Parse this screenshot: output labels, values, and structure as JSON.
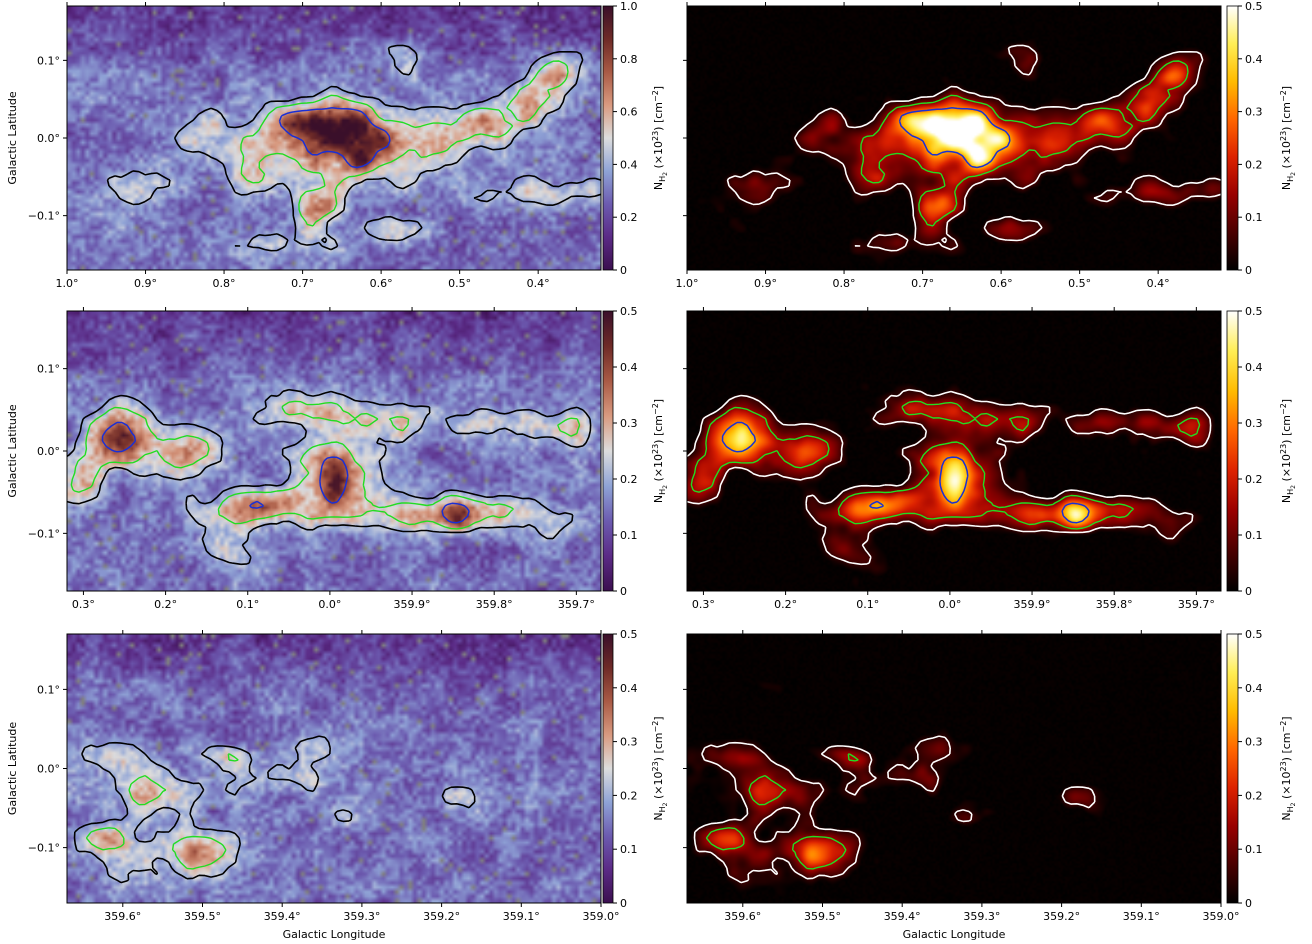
{
  "colors": {
    "left_colormap": [
      "#3b0f4f",
      "#5b2a86",
      "#6c5bb0",
      "#8fa3d6",
      "#dddddd",
      "#d99a80",
      "#a95a45",
      "#6e2a27",
      "#3a0f2a"
    ],
    "right_colormap": [
      "#000000",
      "#4a0000",
      "#990000",
      "#dd2200",
      "#ff6600",
      "#ffbb00",
      "#ffee55",
      "#ffffff"
    ],
    "masked_pixel": "#808080",
    "contour_low_left": "#000000",
    "contour_low_right": "#ffffff",
    "contour_mid": "#22dd22",
    "contour_high": "#1a2fd6"
  },
  "labels": {
    "ylabel": "Galactic Latitude",
    "xlabel": "Galactic Longitude",
    "colorbar": "N_H2 (×10^23) [cm^-2]"
  },
  "chart_data": [
    {
      "type": "heatmap",
      "panel": "row1-left",
      "colormap": "twilight_shifted",
      "x_ticks": [
        "1.0°",
        "0.9°",
        "0.8°",
        "0.7°",
        "0.6°",
        "0.5°",
        "0.4°"
      ],
      "x_range": [
        1.0,
        0.32
      ],
      "y_ticks": [
        "0.1°",
        "0.0°",
        "−0.1°"
      ],
      "y_range": [
        -0.17,
        0.17
      ],
      "ylabel": "Galactic Latitude",
      "xlabel": "",
      "colorbar_ticks": [
        "0",
        "0.2",
        "0.4",
        "0.6",
        "0.8",
        "1.0"
      ],
      "colorbar_range": [
        0,
        1.0
      ],
      "colorbar_label": "N_H2 (×10^23) [cm^-2]"
    },
    {
      "type": "heatmap",
      "panel": "row1-right",
      "colormap": "hot",
      "x_ticks": [
        "1.0°",
        "0.9°",
        "0.8°",
        "0.7°",
        "0.6°",
        "0.5°",
        "0.4°"
      ],
      "x_range": [
        1.0,
        0.32
      ],
      "y_ticks": [],
      "y_range": [
        -0.17,
        0.17
      ],
      "ylabel": "",
      "xlabel": "",
      "colorbar_ticks": [
        "0",
        "0.1",
        "0.2",
        "0.3",
        "0.4",
        "0.5"
      ],
      "colorbar_range": [
        0,
        0.5
      ],
      "colorbar_label": "N_H2 (×10^23) [cm^-2]"
    },
    {
      "type": "heatmap",
      "panel": "row2-left",
      "colormap": "twilight_shifted",
      "x_ticks": [
        "0.3°",
        "0.2°",
        "0.1°",
        "0.0°",
        "359.9°",
        "359.8°",
        "359.7°"
      ],
      "x_range": [
        0.32,
        -0.33
      ],
      "y_ticks": [
        "0.1°",
        "0.0°",
        "−0.1°"
      ],
      "y_range": [
        -0.17,
        0.17
      ],
      "ylabel": "Galactic Latitude",
      "xlabel": "",
      "colorbar_ticks": [
        "0",
        "0.1",
        "0.2",
        "0.3",
        "0.4",
        "0.5"
      ],
      "colorbar_range": [
        0,
        0.5
      ],
      "colorbar_label": "N_H2 (×10^23) [cm^-2]"
    },
    {
      "type": "heatmap",
      "panel": "row2-right",
      "colormap": "hot",
      "x_ticks": [
        "0.3°",
        "0.2°",
        "0.1°",
        "0.0°",
        "359.9°",
        "359.8°",
        "359.7°"
      ],
      "x_range": [
        0.32,
        -0.33
      ],
      "y_ticks": [],
      "y_range": [
        -0.17,
        0.17
      ],
      "ylabel": "",
      "xlabel": "",
      "colorbar_ticks": [
        "0",
        "0.1",
        "0.2",
        "0.3",
        "0.4",
        "0.5"
      ],
      "colorbar_range": [
        0,
        0.5
      ],
      "colorbar_label": "N_H2 (×10^23) [cm^-2]"
    },
    {
      "type": "heatmap",
      "panel": "row3-left",
      "colormap": "twilight_shifted",
      "x_ticks": [
        "359.6°",
        "359.5°",
        "359.4°",
        "359.3°",
        "359.2°",
        "359.1°",
        "359.0°"
      ],
      "x_range": [
        -0.33,
        -1.0
      ],
      "y_ticks": [
        "0.1°",
        "0.0°",
        "−0.1°"
      ],
      "y_range": [
        -0.17,
        0.17
      ],
      "ylabel": "Galactic Latitude",
      "xlabel": "Galactic Longitude",
      "colorbar_ticks": [
        "0",
        "0.1",
        "0.2",
        "0.3",
        "0.4",
        "0.5"
      ],
      "colorbar_range": [
        0,
        0.5
      ],
      "colorbar_label": "N_H2 (×10^23) [cm^-2]"
    },
    {
      "type": "heatmap",
      "panel": "row3-right",
      "colormap": "hot",
      "x_ticks": [
        "359.6°",
        "359.5°",
        "359.4°",
        "359.3°",
        "359.2°",
        "359.1°",
        "359.0°"
      ],
      "x_range": [
        -0.33,
        -1.0
      ],
      "y_ticks": [],
      "y_range": [
        -0.17,
        0.17
      ],
      "ylabel": "",
      "xlabel": "Galactic Longitude",
      "colorbar_ticks": [
        "0",
        "0.1",
        "0.2",
        "0.3",
        "0.4",
        "0.5"
      ],
      "colorbar_range": [
        0,
        0.5
      ],
      "colorbar_label": "N_H2 (×10^23) [cm^-2]"
    }
  ]
}
